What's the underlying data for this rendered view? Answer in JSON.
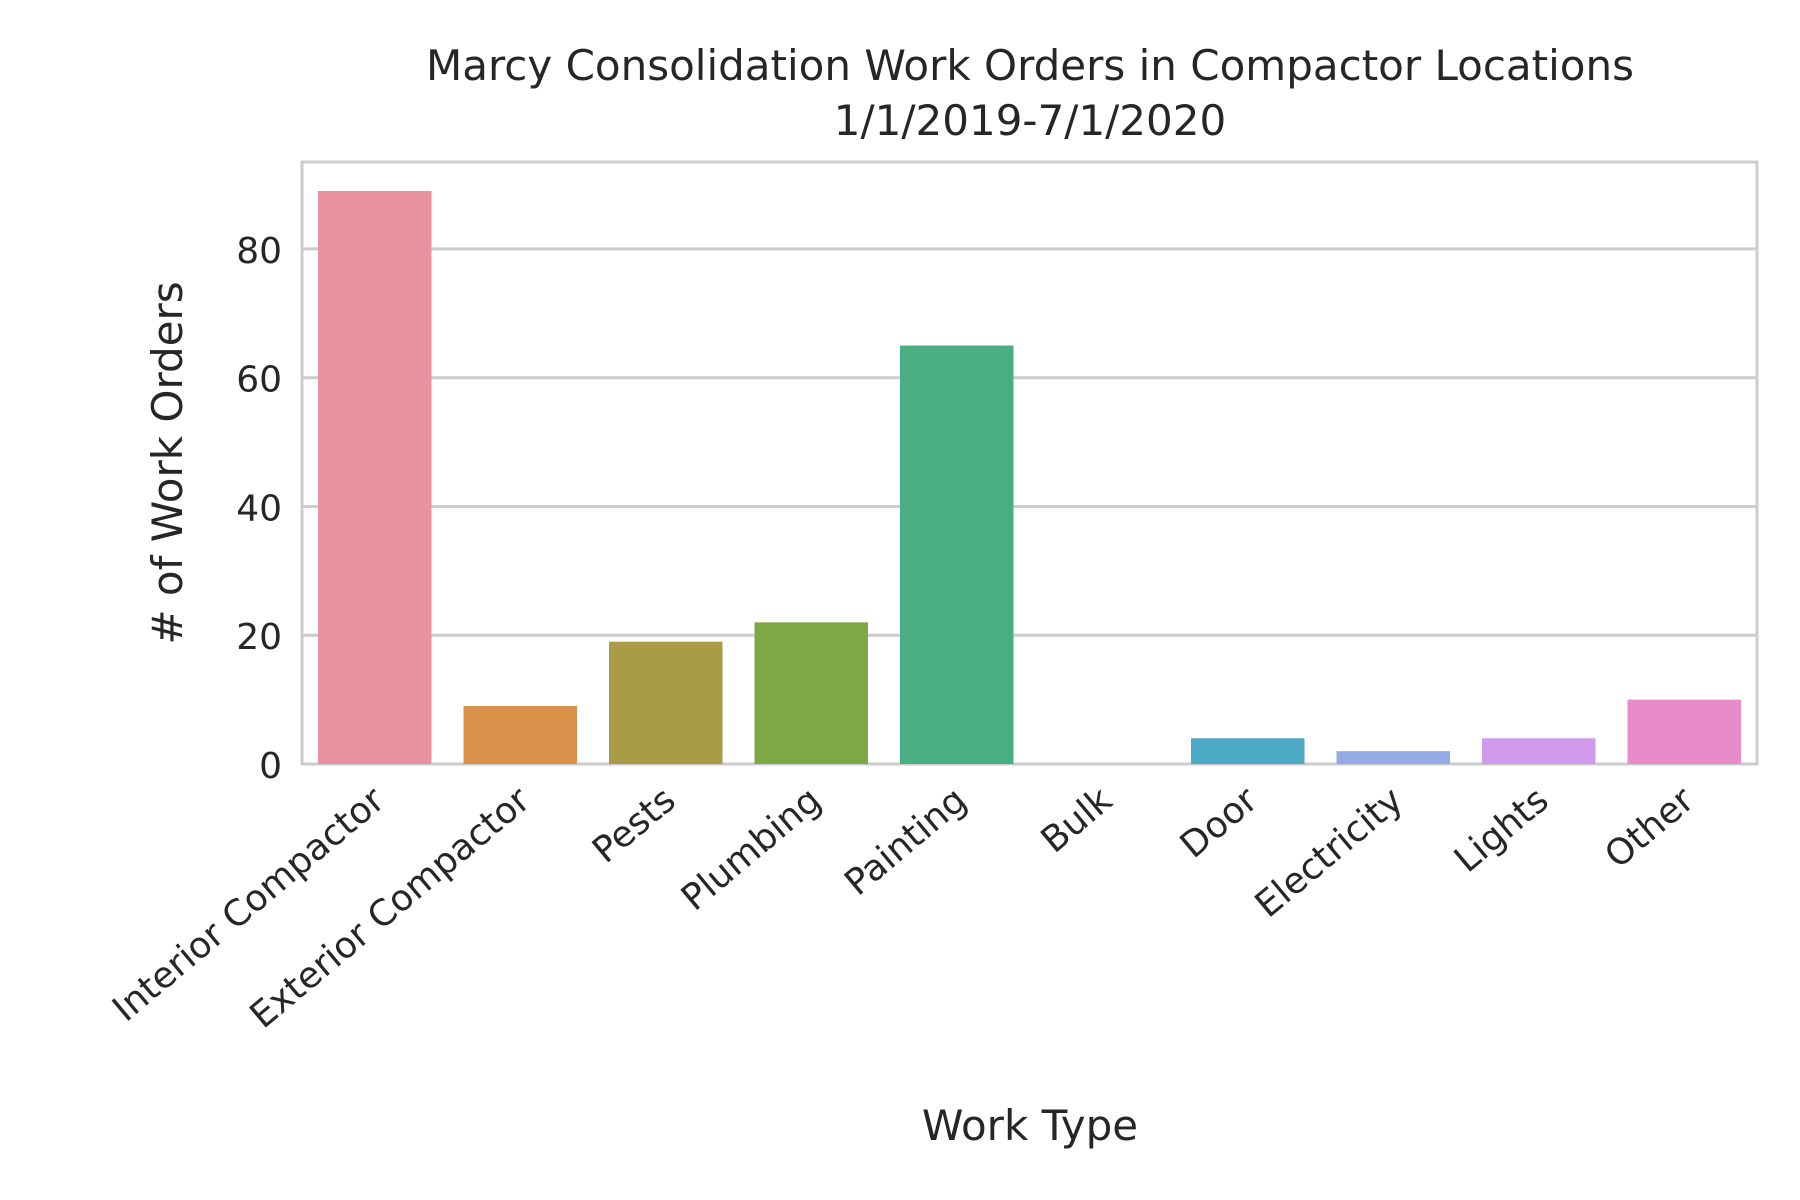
{
  "chart_data": {
    "type": "bar",
    "title_lines": [
      "Marcy Consolidation Work Orders in Compactor Locations",
      "1/1/2019-7/1/2020"
    ],
    "xlabel": "Work Type",
    "ylabel": "# of Work Orders",
    "categories": [
      "Interior Compactor",
      "Exterior Compactor",
      "Pests",
      "Plumbing",
      "Painting",
      "Bulk",
      "Door",
      "Electricity",
      "Lights",
      "Other"
    ],
    "values": [
      89,
      9,
      19,
      22,
      65,
      0,
      4,
      2,
      4,
      10
    ],
    "colors": [
      "#e8919f",
      "#d99049",
      "#aa9c47",
      "#7ea845",
      "#4aae83",
      "#4aac9c",
      "#4daac7",
      "#93ace6",
      "#d099eb",
      "#e88cc9"
    ],
    "ylim": [
      0,
      93.5
    ],
    "yticks": [
      0,
      20,
      40,
      60,
      80
    ],
    "grid": true,
    "grid_axis": "y"
  }
}
